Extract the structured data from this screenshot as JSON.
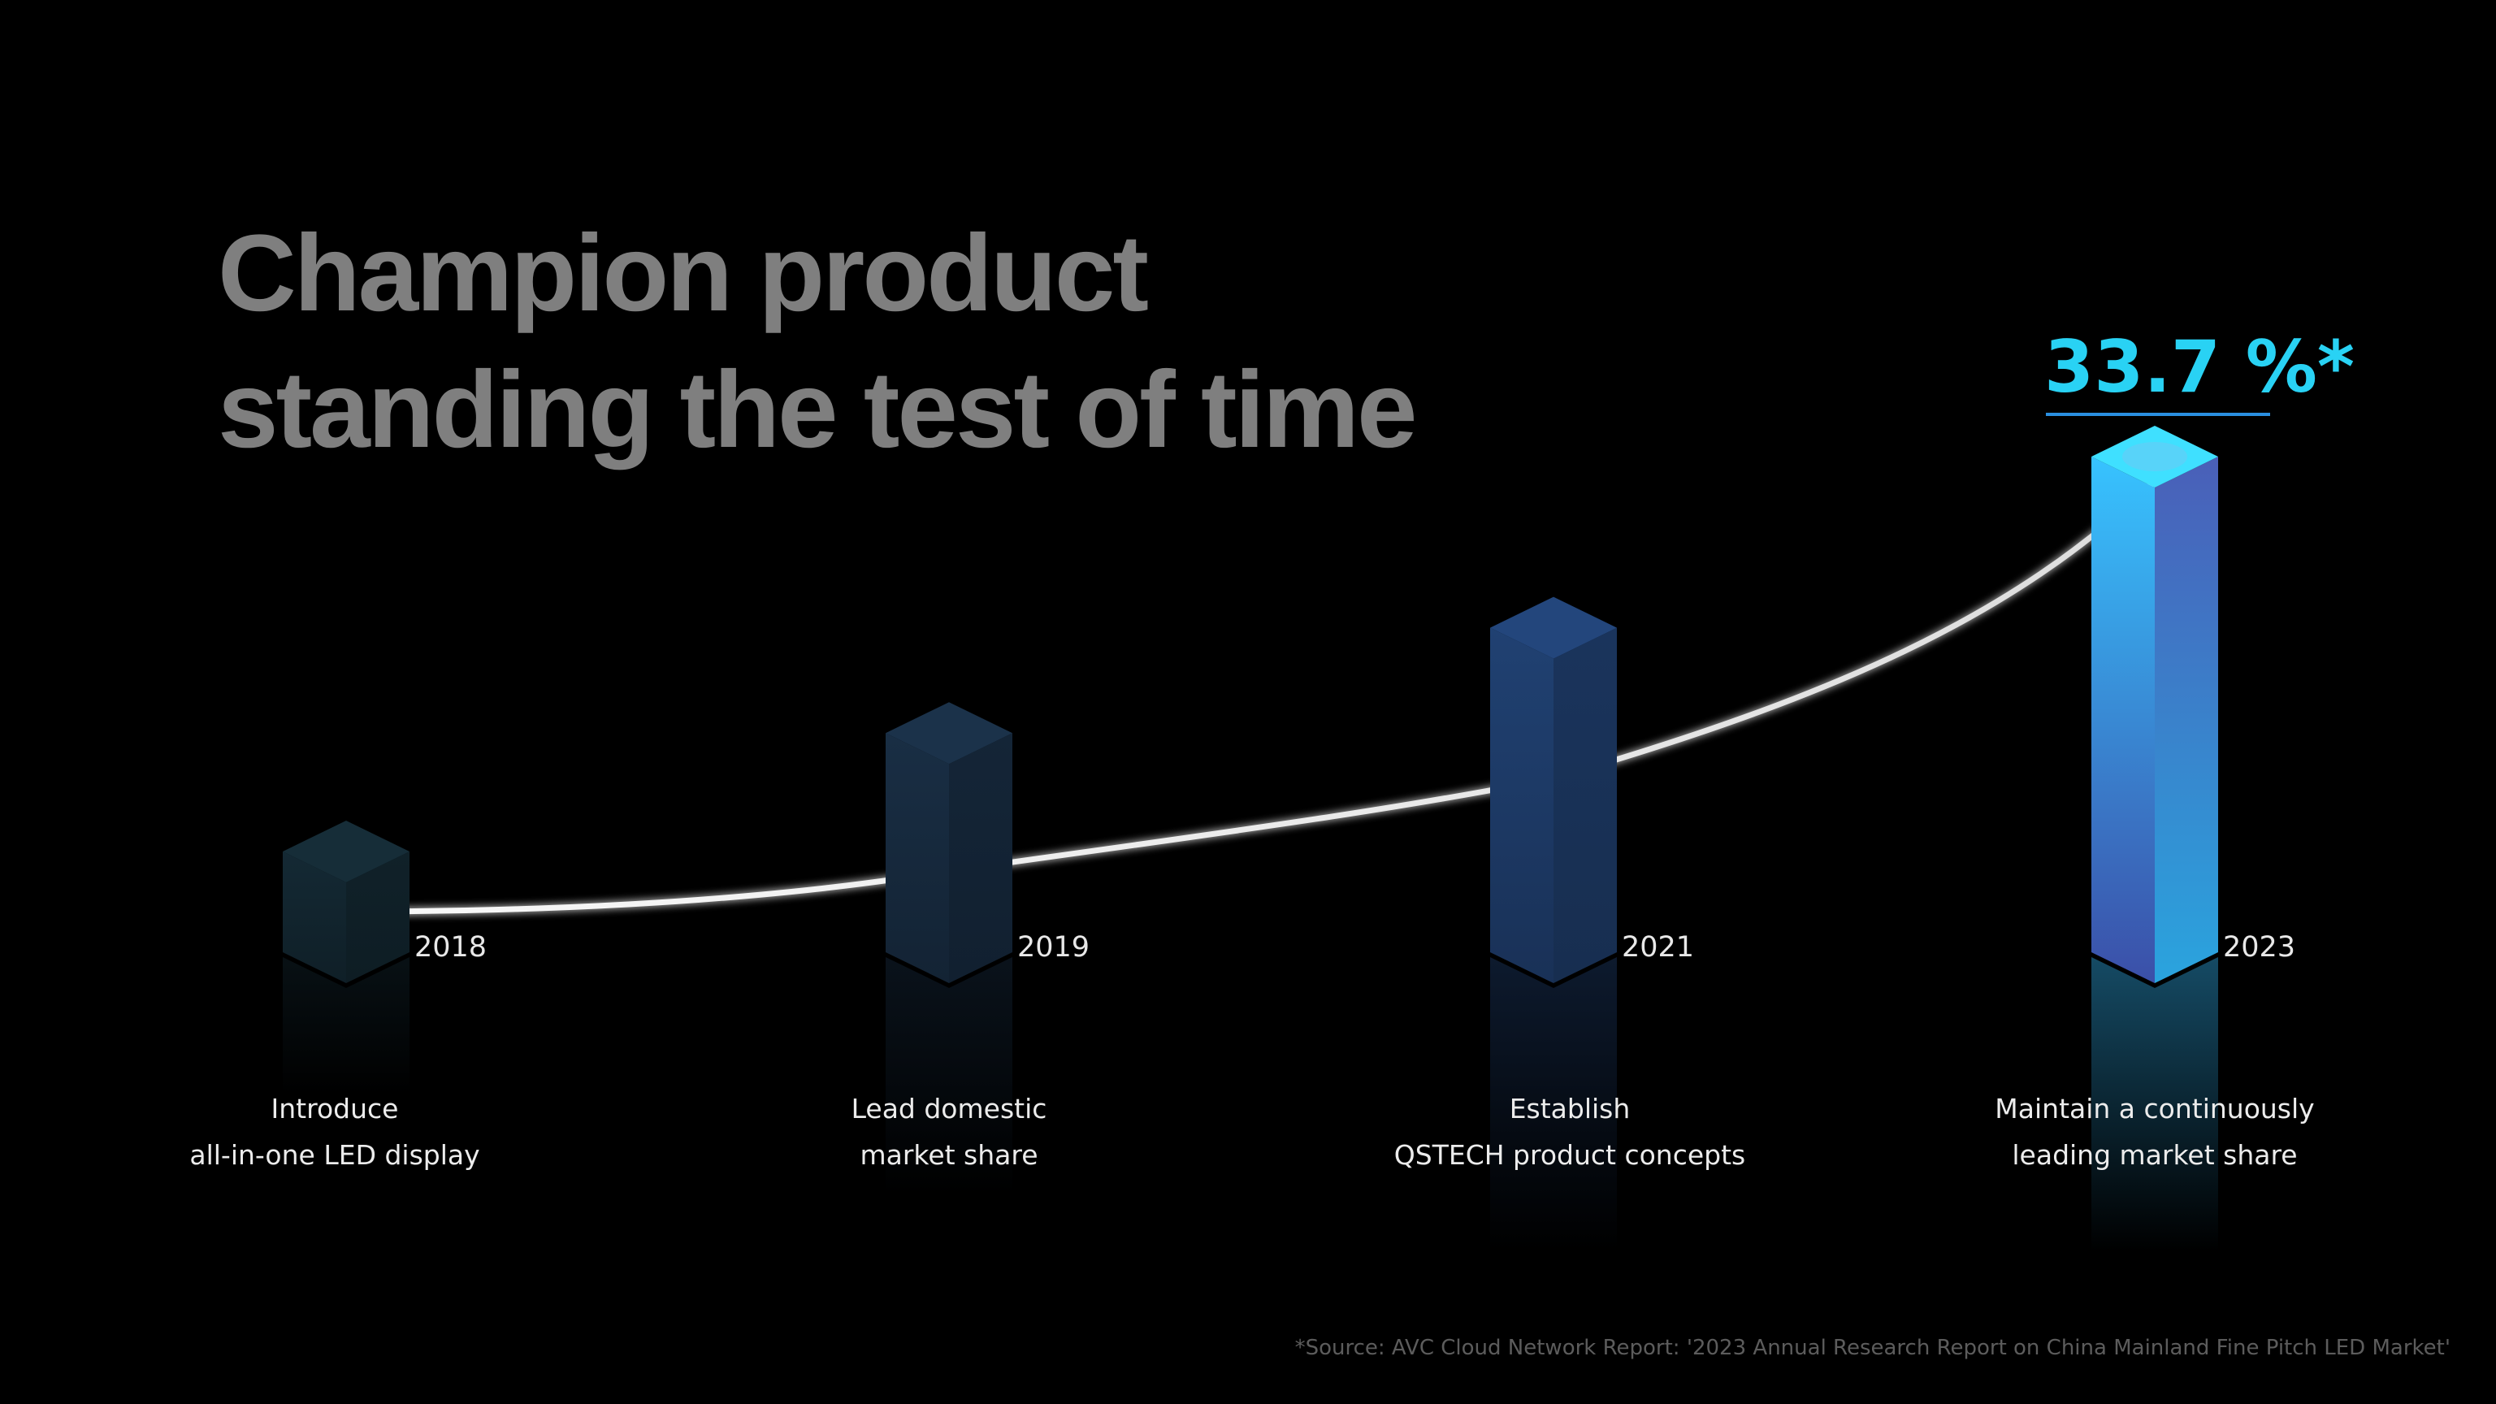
{
  "title": {
    "line1": "Champion product",
    "line2": "standing the test of time"
  },
  "highlight": {
    "value_text": "33.7 %*",
    "color": "#29d2f4"
  },
  "footnote": "*Source: AVC Cloud Network Report: '2023 Annual Research Report on China Mainland Fine Pitch LED Market'",
  "chart_data": {
    "type": "bar",
    "categories": [
      "2018",
      "2019",
      "2021",
      "2023"
    ],
    "values": [
      1.0,
      1.9,
      2.7,
      4.0
    ],
    "value_note": "relative bar heights (no axis shown); final value 33.7 %",
    "descriptions": [
      [
        "Introduce",
        "all-in-one LED display"
      ],
      [
        "Lead domestic",
        "market share"
      ],
      [
        "Establish",
        "QSTECH product concepts"
      ],
      [
        "Maintain a continuously",
        "leading market share"
      ]
    ],
    "bar_colors": [
      "#12252e",
      "#16293d",
      "#1d3a66",
      "#2fa6e0"
    ],
    "trend_line": true,
    "grid": false,
    "legend": "none"
  }
}
